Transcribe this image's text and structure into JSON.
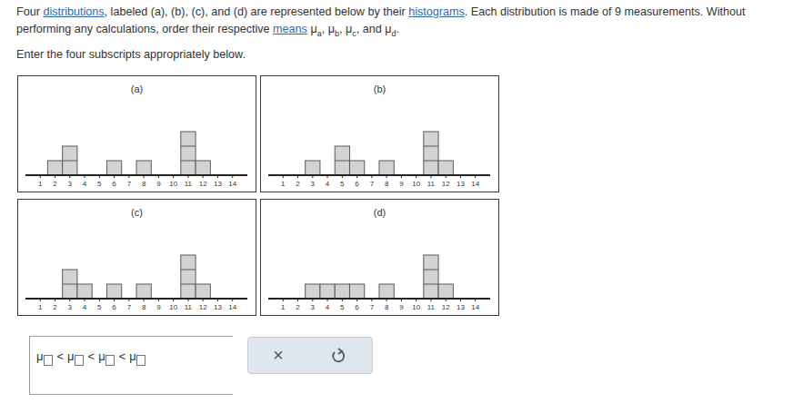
{
  "question": {
    "segments": [
      {
        "text": "Four "
      },
      {
        "text": "distributions",
        "link": true
      },
      {
        "text": ", labeled (a), (b), (c), and (d) are represented below by their "
      },
      {
        "text": "histograms",
        "link": true
      },
      {
        "text": ". Each distribution is made of 9 measurements. Without performing any calculations, order their respective "
      },
      {
        "text": "means",
        "link": true
      },
      {
        "text": " "
      },
      {
        "text": "μ",
        "sub": "a"
      },
      {
        "text": ", "
      },
      {
        "text": "μ",
        "sub": "b"
      },
      {
        "text": ", "
      },
      {
        "text": "μ",
        "sub": "c"
      },
      {
        "text": ", and "
      },
      {
        "text": "μ",
        "sub": "d"
      },
      {
        "text": "."
      }
    ]
  },
  "instruction": "Enter the four subscripts appropriately below.",
  "chart_data": [
    {
      "type": "histogram",
      "title": "(a)",
      "bins": [
        1.5,
        2.5,
        3.5,
        4.5,
        5.5,
        6.5,
        7.5,
        8.5,
        9.5,
        10.5,
        11.5,
        12.5
      ],
      "values": [
        1,
        2,
        0,
        0,
        1,
        0,
        1,
        0,
        0,
        3,
        1
      ],
      "color": "#d3d3d3",
      "xlim": [
        0,
        15
      ],
      "xticks": [
        1,
        2,
        3,
        4,
        5,
        6,
        7,
        8,
        9,
        10,
        11,
        12,
        13,
        14
      ],
      "ylim": [
        0,
        6
      ],
      "tick_labels": "x"
    },
    {
      "type": "histogram",
      "title": "(b)",
      "bins": [
        1.5,
        2.5,
        3.5,
        4.5,
        5.5,
        6.5,
        7.5,
        8.5,
        9.5,
        10.5,
        11.5,
        12.5
      ],
      "values": [
        0,
        1,
        0,
        2,
        1,
        0,
        1,
        0,
        0,
        3,
        1
      ],
      "color": "#d3d3d3",
      "xlim": [
        0,
        15
      ],
      "xticks": [
        1,
        2,
        3,
        4,
        5,
        6,
        7,
        8,
        9,
        10,
        11,
        12,
        13,
        14
      ],
      "ylim": [
        0,
        6
      ],
      "tick_labels": "x"
    },
    {
      "type": "histogram",
      "title": "(c)",
      "bins": [
        1.5,
        2.5,
        3.5,
        4.5,
        5.5,
        6.5,
        7.5,
        8.5,
        9.5,
        10.5,
        11.5,
        12.5
      ],
      "values": [
        0,
        2,
        1,
        0,
        1,
        0,
        1,
        0,
        0,
        3,
        1
      ],
      "color": "#d3d3d3",
      "xlim": [
        0,
        15
      ],
      "xticks": [
        1,
        2,
        3,
        4,
        5,
        6,
        7,
        8,
        9,
        10,
        11,
        12,
        13,
        14
      ],
      "ylim": [
        0,
        6
      ],
      "tick_labels": "x"
    },
    {
      "type": "histogram",
      "title": "(d)",
      "bins": [
        1.5,
        2.5,
        3.5,
        4.5,
        5.5,
        6.5,
        7.5,
        8.5,
        9.5,
        10.5,
        11.5,
        12.5
      ],
      "values": [
        0,
        1,
        1,
        1,
        1,
        0,
        1,
        0,
        0,
        3,
        1
      ],
      "color": "#d3d3d3",
      "xlim": [
        0,
        15
      ],
      "xticks": [
        1,
        2,
        3,
        4,
        5,
        6,
        7,
        8,
        9,
        10,
        11,
        12,
        13,
        14
      ],
      "ylim": [
        0,
        6
      ],
      "tick_labels": "x"
    }
  ],
  "answer": {
    "symbol": "μ",
    "separator": "<",
    "slots": 4
  },
  "buttons": {
    "clear": "×"
  }
}
